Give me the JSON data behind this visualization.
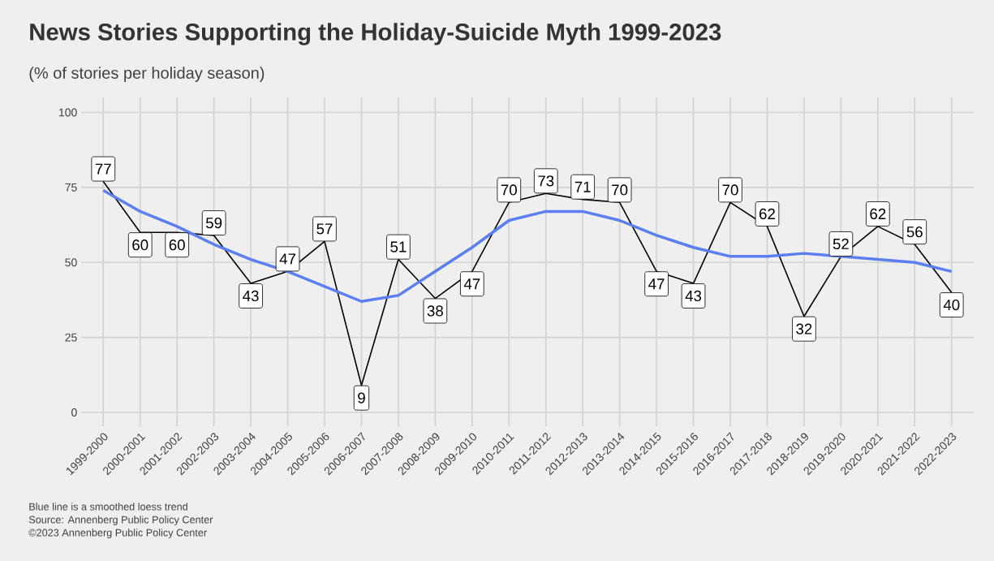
{
  "chart_data": {
    "type": "line",
    "title": "News Stories Supporting the Holiday-Suicide Myth 1999-2023",
    "subtitle": "(% of stories per holiday season)",
    "categories": [
      "1999-2000",
      "2000-2001",
      "2001-2002",
      "2002-2003",
      "2003-2004",
      "2004-2005",
      "2005-2006",
      "2006-2007",
      "2007-2008",
      "2008-2009",
      "2009-2010",
      "2010-2011",
      "2011-2012",
      "2012-2013",
      "2013-2014",
      "2014-2015",
      "2015-2016",
      "2016-2017",
      "2017-2018",
      "2018-2019",
      "2019-2020",
      "2020-2021",
      "2021-2022",
      "2022-2023"
    ],
    "series": [
      {
        "color": "#000000",
        "values": [
          77,
          60,
          60,
          59,
          43,
          47,
          57,
          9,
          51,
          38,
          47,
          70,
          73,
          71,
          70,
          47,
          43,
          70,
          62,
          32,
          52,
          62,
          56,
          40
        ],
        "value_labels": [
          "77",
          "60",
          "60",
          "59",
          "43",
          "47",
          "57",
          "9",
          "51",
          "38",
          "47",
          "70",
          "73",
          "71",
          "70",
          "47",
          "43",
          "70",
          "62",
          "32",
          "52",
          "62",
          "56",
          "40"
        ]
      },
      {
        "color": "#5b7ff0",
        "values": [
          74,
          67,
          62,
          56,
          51,
          47,
          42,
          37,
          39,
          47,
          55,
          64,
          67,
          67,
          64,
          59,
          55,
          52,
          52,
          53,
          52,
          51,
          50,
          47
        ]
      }
    ],
    "ylim": [
      -4.6,
      105
    ],
    "yticks": [
      0,
      25,
      50,
      75,
      100
    ],
    "grid": true,
    "line_style": "solid",
    "annotations": [
      "Blue line is a smoothed loess trend",
      "Source: Annenberg Public Policy Center",
      "©2023 Annenberg Public Policy Center"
    ]
  }
}
